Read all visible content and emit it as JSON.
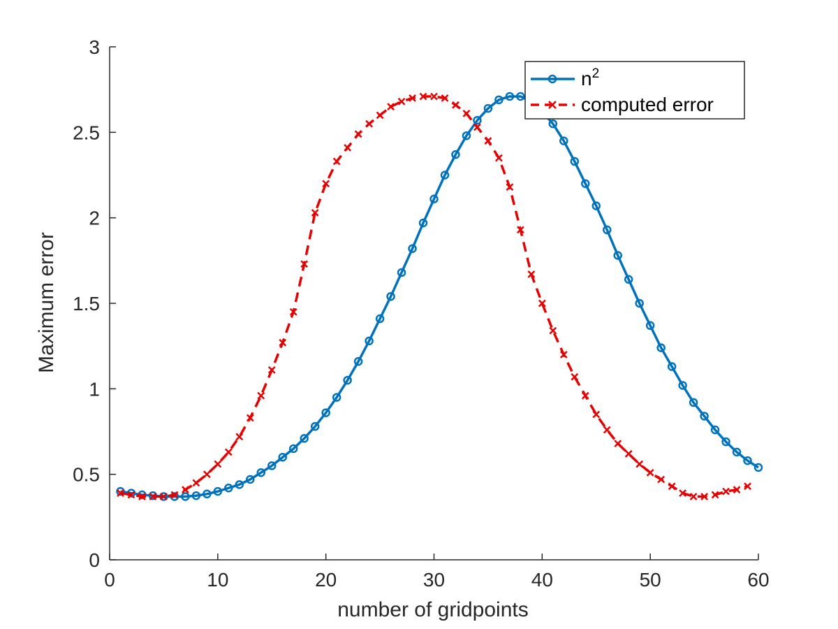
{
  "chart_data": {
    "type": "line",
    "title": "",
    "xlabel": "number of gridpoints",
    "ylabel": "Maximum error",
    "xlim": [
      0,
      60
    ],
    "ylim": [
      0,
      3
    ],
    "xticks": [
      0,
      10,
      20,
      30,
      40,
      50,
      60
    ],
    "yticks": [
      0,
      0.5,
      1,
      1.5,
      2,
      2.5,
      3
    ],
    "xtick_labels": [
      "0",
      "10",
      "20",
      "30",
      "40",
      "50",
      "60"
    ],
    "ytick_labels": [
      "0",
      "0.5",
      "1",
      "1.5",
      "2",
      "2.5",
      "3"
    ],
    "grid": false,
    "legend_position": "top-right",
    "series": [
      {
        "name": "n",
        "name_superscript": "2",
        "color": "#0072BD",
        "line_style": "solid",
        "marker": "circle",
        "x": [
          1,
          2,
          3,
          4,
          5,
          6,
          7,
          8,
          9,
          10,
          11,
          12,
          13,
          14,
          15,
          16,
          17,
          18,
          19,
          20,
          21,
          22,
          23,
          24,
          25,
          26,
          27,
          28,
          29,
          30,
          31,
          32,
          33,
          34,
          35,
          36,
          37,
          38,
          39,
          40,
          41,
          42,
          43,
          44,
          45,
          46,
          47,
          48,
          49,
          50,
          51,
          52,
          53,
          54,
          55,
          56,
          57,
          58,
          59,
          60
        ],
        "y": [
          0.4,
          0.39,
          0.38,
          0.375,
          0.37,
          0.37,
          0.37,
          0.375,
          0.385,
          0.4,
          0.42,
          0.44,
          0.47,
          0.51,
          0.55,
          0.6,
          0.65,
          0.71,
          0.78,
          0.86,
          0.95,
          1.05,
          1.16,
          1.28,
          1.41,
          1.54,
          1.68,
          1.82,
          1.97,
          2.11,
          2.25,
          2.37,
          2.48,
          2.57,
          2.64,
          2.69,
          2.71,
          2.71,
          2.68,
          2.62,
          2.55,
          2.45,
          2.33,
          2.2,
          2.07,
          1.93,
          1.78,
          1.64,
          1.5,
          1.37,
          1.24,
          1.13,
          1.02,
          0.92,
          0.84,
          0.76,
          0.69,
          0.63,
          0.58,
          0.54
        ]
      },
      {
        "name": "computed error",
        "color": "#E60000",
        "line_style": "dashed",
        "marker": "x",
        "x": [
          1,
          2,
          3,
          4,
          5,
          6,
          7,
          8,
          9,
          10,
          11,
          12,
          13,
          14,
          15,
          16,
          17,
          18,
          19,
          20,
          21,
          22,
          23,
          24,
          25,
          26,
          27,
          28,
          29,
          30,
          31,
          32,
          33,
          34,
          35,
          36,
          37,
          38,
          39,
          40,
          41,
          42,
          43,
          44,
          45,
          46,
          47,
          48,
          49,
          50,
          51,
          52,
          53,
          54,
          55,
          56,
          57,
          58,
          59
        ],
        "y": [
          0.39,
          0.38,
          0.37,
          0.37,
          0.37,
          0.38,
          0.41,
          0.45,
          0.5,
          0.56,
          0.63,
          0.72,
          0.83,
          0.96,
          1.11,
          1.27,
          1.45,
          1.73,
          2.03,
          2.2,
          2.33,
          2.41,
          2.49,
          2.55,
          2.6,
          2.65,
          2.68,
          2.7,
          2.71,
          2.71,
          2.7,
          2.66,
          2.61,
          2.53,
          2.45,
          2.35,
          2.18,
          1.93,
          1.67,
          1.5,
          1.34,
          1.2,
          1.07,
          0.96,
          0.85,
          0.76,
          0.68,
          0.62,
          0.56,
          0.51,
          0.47,
          0.43,
          0.39,
          0.37,
          0.37,
          0.38,
          0.4,
          0.41,
          0.43
        ]
      }
    ]
  }
}
